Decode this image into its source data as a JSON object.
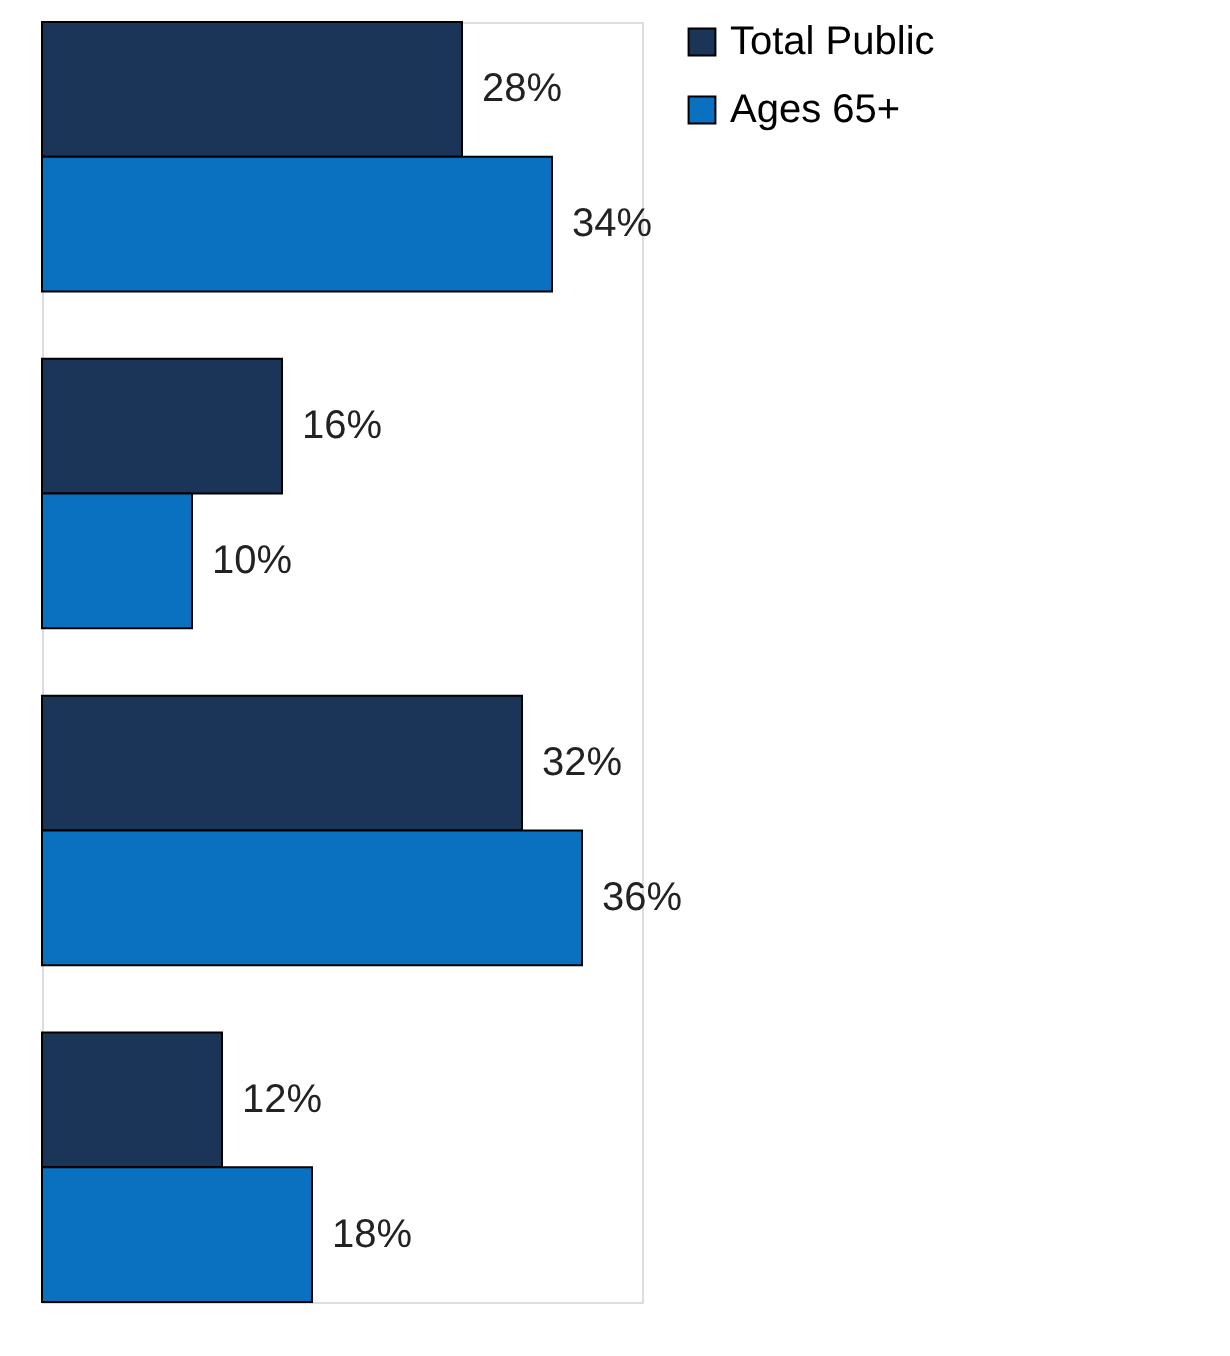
{
  "chart_data": {
    "type": "bar",
    "orientation": "horizontal",
    "categories": [
      null,
      null,
      null,
      null
    ],
    "series": [
      {
        "name": "Total Public",
        "color": "#1b3558",
        "values": [
          28,
          16,
          32,
          12
        ],
        "value_labels": [
          "28%",
          "16%",
          "32%",
          "12%"
        ]
      },
      {
        "name": "Ages 65+",
        "color": "#0a70c0",
        "values": [
          34,
          10,
          36,
          18
        ],
        "value_labels": [
          "34%",
          "10%",
          "36%",
          "18%"
        ]
      }
    ],
    "legend": "right"
  }
}
